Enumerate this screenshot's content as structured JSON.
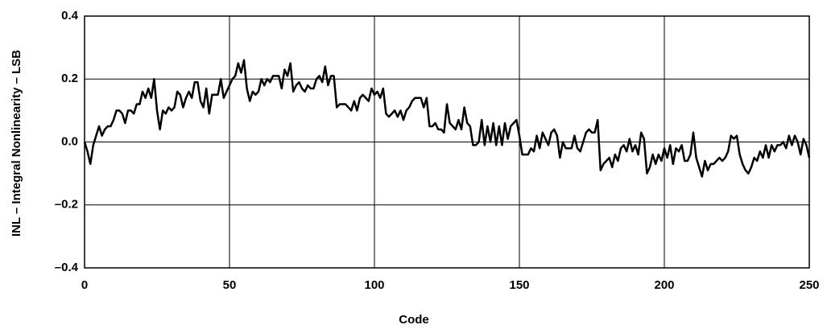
{
  "chart_data": {
    "type": "line",
    "xlabel": "Code",
    "ylabel": "INL – Integral Nonlinearity – LSB",
    "x": [
      0,
      1,
      2,
      3,
      4,
      5,
      6,
      7,
      8,
      9,
      10,
      11,
      12,
      13,
      14,
      15,
      16,
      17,
      18,
      19,
      20,
      21,
      22,
      23,
      24,
      25,
      26,
      27,
      28,
      29,
      30,
      31,
      32,
      33,
      34,
      35,
      36,
      37,
      38,
      39,
      40,
      41,
      42,
      43,
      44,
      45,
      46,
      47,
      48,
      49,
      50,
      51,
      52,
      53,
      54,
      55,
      56,
      57,
      58,
      59,
      60,
      61,
      62,
      63,
      64,
      65,
      66,
      67,
      68,
      69,
      70,
      71,
      72,
      73,
      74,
      75,
      76,
      77,
      78,
      79,
      80,
      81,
      82,
      83,
      84,
      85,
      86,
      87,
      88,
      89,
      90,
      91,
      92,
      93,
      94,
      95,
      96,
      97,
      98,
      99,
      100,
      101,
      102,
      103,
      104,
      105,
      106,
      107,
      108,
      109,
      110,
      111,
      112,
      113,
      114,
      115,
      116,
      117,
      118,
      119,
      120,
      121,
      122,
      123,
      124,
      125,
      126,
      127,
      128,
      129,
      130,
      131,
      132,
      133,
      134,
      135,
      136,
      137,
      138,
      139,
      140,
      141,
      142,
      143,
      144,
      145,
      146,
      147,
      148,
      149,
      150,
      151,
      152,
      153,
      154,
      155,
      156,
      157,
      158,
      159,
      160,
      161,
      162,
      163,
      164,
      165,
      166,
      167,
      168,
      169,
      170,
      171,
      172,
      173,
      174,
      175,
      176,
      177,
      178,
      179,
      180,
      181,
      182,
      183,
      184,
      185,
      186,
      187,
      188,
      189,
      190,
      191,
      192,
      193,
      194,
      195,
      196,
      197,
      198,
      199,
      200,
      201,
      202,
      203,
      204,
      205,
      206,
      207,
      208,
      209,
      210,
      211,
      212,
      213,
      214,
      215,
      216,
      217,
      218,
      219,
      220,
      221,
      222,
      223,
      224,
      225,
      226,
      227,
      228,
      229,
      230,
      231,
      232,
      233,
      234,
      235,
      236,
      237,
      238,
      239,
      240,
      241,
      242,
      243,
      244,
      245,
      246,
      247,
      248,
      249,
      250
    ],
    "series": [
      {
        "color": "#000000",
        "values": [
          0.0,
          -0.03,
          -0.07,
          -0.01,
          0.02,
          0.05,
          0.02,
          0.04,
          0.05,
          0.05,
          0.07,
          0.1,
          0.1,
          0.09,
          0.06,
          0.1,
          0.1,
          0.09,
          0.12,
          0.12,
          0.16,
          0.14,
          0.17,
          0.14,
          0.2,
          0.1,
          0.04,
          0.1,
          0.09,
          0.11,
          0.1,
          0.11,
          0.16,
          0.15,
          0.11,
          0.14,
          0.16,
          0.14,
          0.19,
          0.19,
          0.13,
          0.11,
          0.17,
          0.09,
          0.15,
          0.15,
          0.15,
          0.2,
          0.14,
          0.16,
          0.18,
          0.2,
          0.21,
          0.25,
          0.22,
          0.26,
          0.17,
          0.13,
          0.16,
          0.15,
          0.16,
          0.2,
          0.18,
          0.2,
          0.19,
          0.21,
          0.21,
          0.21,
          0.17,
          0.23,
          0.21,
          0.25,
          0.16,
          0.18,
          0.19,
          0.17,
          0.16,
          0.18,
          0.17,
          0.17,
          0.2,
          0.21,
          0.19,
          0.24,
          0.18,
          0.21,
          0.21,
          0.11,
          0.12,
          0.12,
          0.12,
          0.11,
          0.1,
          0.13,
          0.1,
          0.14,
          0.15,
          0.14,
          0.13,
          0.17,
          0.15,
          0.16,
          0.14,
          0.17,
          0.09,
          0.08,
          0.09,
          0.1,
          0.08,
          0.1,
          0.07,
          0.1,
          0.11,
          0.13,
          0.14,
          0.14,
          0.14,
          0.11,
          0.14,
          0.05,
          0.05,
          0.06,
          0.04,
          0.04,
          0.03,
          0.12,
          0.06,
          0.05,
          0.04,
          0.07,
          0.04,
          0.11,
          0.06,
          0.05,
          -0.01,
          -0.01,
          0.0,
          0.07,
          -0.01,
          0.05,
          0.0,
          0.06,
          -0.01,
          0.05,
          -0.01,
          0.06,
          0.01,
          0.05,
          0.06,
          0.07,
          0.02,
          -0.04,
          -0.04,
          -0.04,
          -0.02,
          -0.03,
          0.02,
          -0.02,
          0.03,
          0.01,
          -0.01,
          0.03,
          0.04,
          0.02,
          -0.05,
          0.0,
          -0.02,
          -0.02,
          -0.02,
          0.02,
          -0.02,
          -0.03,
          0.0,
          0.03,
          0.04,
          0.03,
          0.03,
          0.07,
          -0.09,
          -0.07,
          -0.06,
          -0.05,
          -0.08,
          -0.04,
          -0.06,
          -0.02,
          -0.01,
          -0.03,
          0.01,
          -0.03,
          -0.01,
          -0.04,
          0.03,
          0.01,
          -0.1,
          -0.08,
          -0.04,
          -0.07,
          -0.04,
          -0.06,
          -0.02,
          -0.05,
          -0.01,
          -0.07,
          -0.02,
          -0.03,
          -0.01,
          -0.06,
          -0.06,
          -0.04,
          0.03,
          -0.05,
          -0.08,
          -0.11,
          -0.06,
          -0.09,
          -0.07,
          -0.07,
          -0.06,
          -0.05,
          -0.06,
          -0.05,
          -0.03,
          0.02,
          0.01,
          0.02,
          -0.04,
          -0.07,
          -0.09,
          -0.1,
          -0.08,
          -0.05,
          -0.06,
          -0.03,
          -0.05,
          -0.01,
          -0.05,
          -0.01,
          -0.03,
          -0.01,
          -0.01,
          0.0,
          -0.02,
          0.02,
          -0.01,
          0.02,
          0.0,
          -0.04,
          0.01,
          -0.01,
          -0.05
        ]
      }
    ],
    "xlim": [
      0,
      250
    ],
    "xticks": [
      0,
      50,
      100,
      150,
      200,
      250
    ],
    "ylim": [
      -0.4,
      0.4
    ],
    "yticks": [
      {
        "value": -0.4,
        "label": "–0.4"
      },
      {
        "value": -0.2,
        "label": "–0.2"
      },
      {
        "value": 0,
        "label": "0.0"
      },
      0.2,
      0.4
    ],
    "grid": true
  }
}
